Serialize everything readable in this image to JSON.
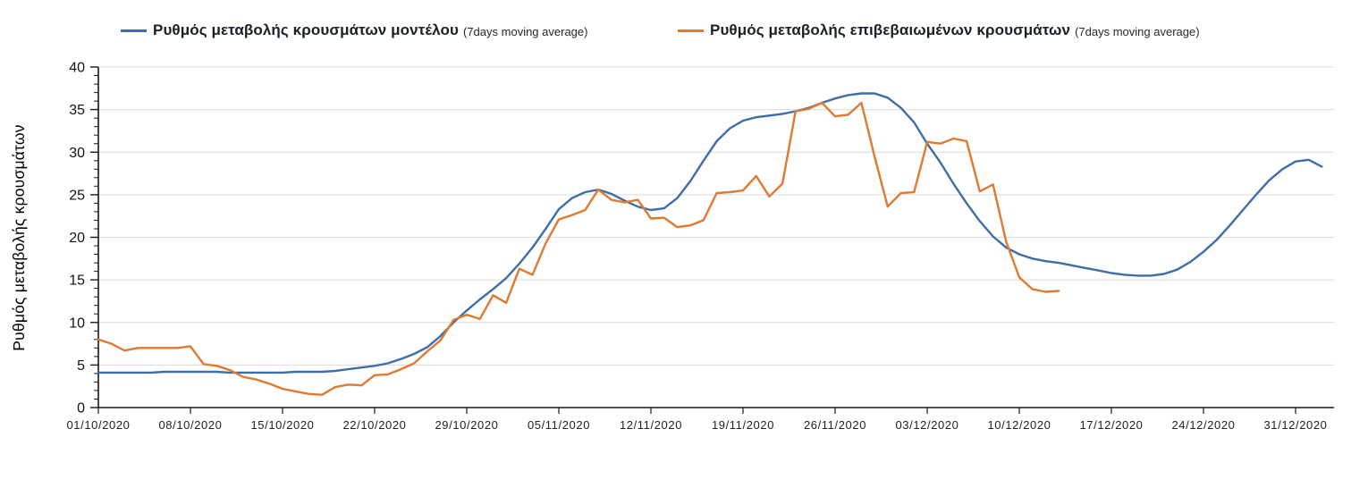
{
  "legend": [
    {
      "label": "Ρυθμός μεταβολής κρουσμάτων μοντέλου",
      "sublabel": "(7days moving average)",
      "color": "#3E6EA9"
    },
    {
      "label": "Ρυθμός μεταβολής επιβεβαιωμένων κρουσμάτων",
      "sublabel": "(7days moving average)",
      "color": "#DF7A30"
    }
  ],
  "chart_data": {
    "type": "line",
    "title": "",
    "xlabel": "",
    "ylabel": "Ρυθμός μεταβολής κρουσμάτων",
    "ylim": [
      0,
      40
    ],
    "y_major_step": 5,
    "y_minor_step": 1,
    "grid": "horizontal-major-only",
    "legend_position": "top",
    "y_tick_labels": [
      "0",
      "5",
      "10",
      "15",
      "20",
      "25",
      "30",
      "35",
      "40"
    ],
    "x_ticks": [
      {
        "day": 0,
        "label": "01/10/2020"
      },
      {
        "day": 7,
        "label": "08/10/2020"
      },
      {
        "day": 14,
        "label": "15/10/2020"
      },
      {
        "day": 21,
        "label": "22/10/2020"
      },
      {
        "day": 28,
        "label": "29/10/2020"
      },
      {
        "day": 35,
        "label": "05/11/2020"
      },
      {
        "day": 42,
        "label": "12/11/2020"
      },
      {
        "day": 49,
        "label": "19/11/2020"
      },
      {
        "day": 56,
        "label": "26/11/2020"
      },
      {
        "day": 63,
        "label": "03/12/2020"
      },
      {
        "day": 70,
        "label": "10/12/2020"
      },
      {
        "day": 77,
        "label": "17/12/2020"
      },
      {
        "day": 84,
        "label": "24/12/2020"
      },
      {
        "day": 91,
        "label": "31/12/2020"
      }
    ],
    "series": [
      {
        "name": "Ρυθμός μεταβολής κρουσμάτων μοντέλου (7days moving average)",
        "color": "#3E6EA9",
        "start_date": "01/10/2020",
        "start_day": 0,
        "values": [
          4.1,
          4.1,
          4.1,
          4.1,
          4.1,
          4.2,
          4.2,
          4.2,
          4.2,
          4.2,
          4.1,
          4.1,
          4.1,
          4.1,
          4.1,
          4.2,
          4.2,
          4.2,
          4.3,
          4.5,
          4.7,
          4.9,
          5.2,
          5.7,
          6.3,
          7.1,
          8.4,
          10.0,
          11.4,
          12.7,
          13.9,
          15.2,
          16.9,
          18.8,
          21.0,
          23.3,
          24.6,
          25.3,
          25.6,
          25.1,
          24.3,
          23.6,
          23.2,
          23.4,
          24.6,
          26.6,
          29.0,
          31.3,
          32.8,
          33.7,
          34.1,
          34.3,
          34.5,
          34.8,
          35.2,
          35.8,
          36.3,
          36.7,
          36.9,
          36.9,
          36.4,
          35.2,
          33.5,
          31.0,
          28.8,
          26.3,
          24.0,
          21.9,
          20.1,
          18.8,
          18.0,
          17.5,
          17.2,
          17.0,
          16.7,
          16.4,
          16.1,
          15.8,
          15.6,
          15.5,
          15.5,
          15.7,
          16.2,
          17.1,
          18.3,
          19.7,
          21.4,
          23.2,
          25.0,
          26.7,
          28.0,
          28.9,
          29.1,
          28.3
        ]
      },
      {
        "name": "Ρυθμός μεταβολής επιβεβαιωμένων κρουσμάτων (7days moving average)",
        "color": "#DF7A30",
        "start_date": "01/10/2020",
        "start_day": 0,
        "values": [
          8.0,
          7.5,
          6.7,
          7.0,
          7.0,
          7.0,
          7.0,
          7.2,
          5.1,
          4.9,
          4.4,
          3.6,
          3.3,
          2.8,
          2.2,
          1.9,
          1.6,
          1.5,
          2.4,
          2.7,
          2.6,
          3.8,
          3.9,
          4.5,
          5.2,
          6.6,
          7.9,
          10.3,
          10.9,
          10.4,
          13.2,
          12.3,
          16.3,
          15.6,
          19.3,
          22.1,
          22.6,
          23.2,
          25.6,
          24.4,
          24.1,
          24.4,
          22.2,
          22.3,
          21.2,
          21.4,
          22.0,
          25.2,
          25.3,
          25.5,
          27.2,
          24.8,
          26.3,
          34.8,
          35.1,
          35.8,
          34.2,
          34.4,
          35.8,
          29.5,
          23.6,
          25.2,
          25.3,
          31.2,
          31.0,
          31.6,
          31.3,
          25.4,
          26.2,
          19.5,
          15.3,
          13.9,
          13.6,
          13.7
        ]
      }
    ],
    "colors": {
      "grid": "#DCDCDC",
      "axis": "#1a1a1a",
      "tick_text": "#222222"
    }
  }
}
